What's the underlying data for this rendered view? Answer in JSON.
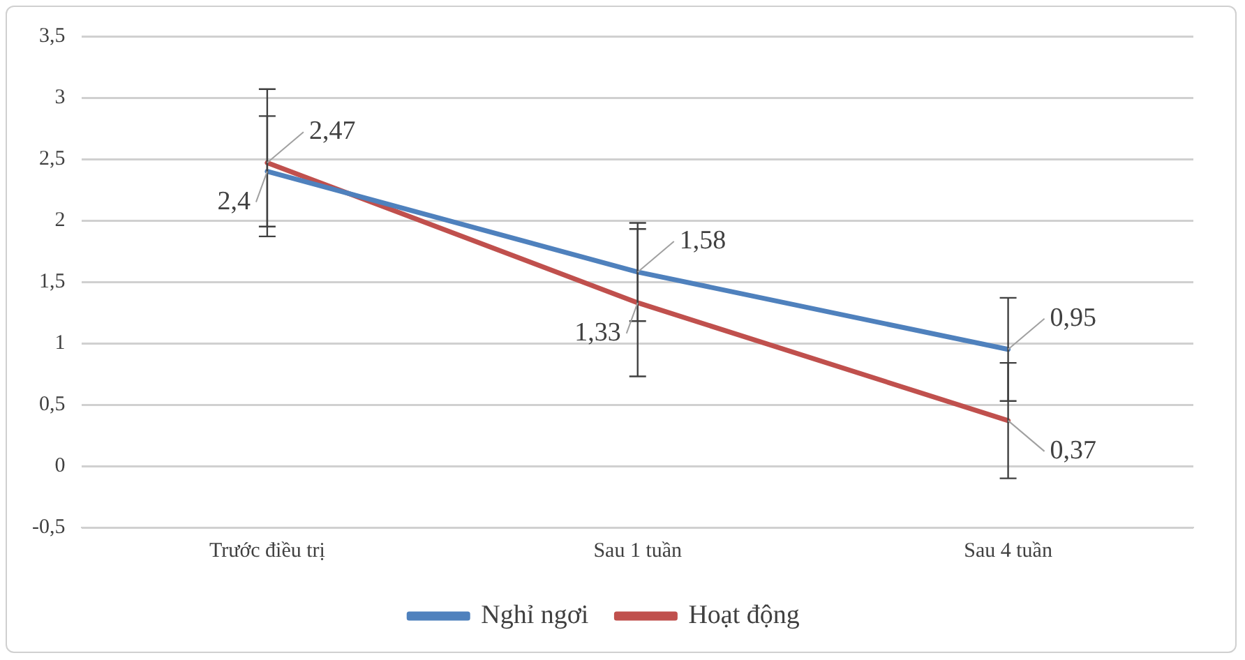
{
  "chart_data": {
    "type": "line",
    "categories": [
      "Trước điều trị",
      "Sau 1 tuần",
      "Sau 4 tuần"
    ],
    "series": [
      {
        "name": "Nghỉ ngơi",
        "color": "#4f81bd",
        "values": [
          2.4,
          1.58,
          0.95
        ],
        "errors": [
          0.45,
          0.4,
          0.42
        ],
        "value_labels": [
          "2,4",
          "1,58",
          "0,95"
        ]
      },
      {
        "name": "Hoạt động",
        "color": "#c0504d",
        "values": [
          2.47,
          1.33,
          0.37
        ],
        "errors": [
          0.6,
          0.6,
          0.47
        ],
        "value_labels": [
          "2,47",
          "1,33",
          "0,37"
        ]
      }
    ],
    "ylim": [
      -0.5,
      3.5
    ],
    "yticks": [
      {
        "value": -0.5,
        "label": "-0,5"
      },
      0,
      {
        "value": 0.5,
        "label": "0,5"
      },
      1,
      {
        "value": 1.5,
        "label": "1,5"
      },
      2,
      {
        "value": 2.5,
        "label": "2,5"
      },
      3,
      {
        "value": 3.5,
        "label": "3,5"
      }
    ],
    "grid": "y",
    "legend": "bottom",
    "marker": "none",
    "line_style": "solid"
  }
}
